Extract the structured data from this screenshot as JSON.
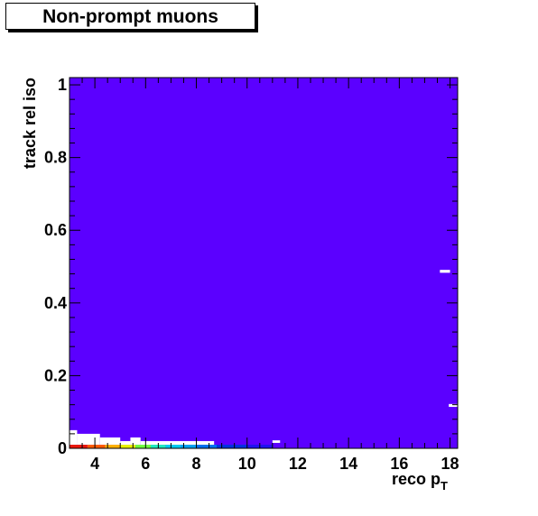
{
  "chart_data": {
    "type": "heatmap",
    "title": "Non-prompt muons",
    "xlabel": "reco p",
    "xlabel_sub": "T",
    "ylabel": "track rel iso",
    "xlim": [
      3,
      18.3
    ],
    "ylim": [
      0,
      1.02
    ],
    "x_ticks": [
      4,
      6,
      8,
      10,
      12,
      14,
      16,
      18
    ],
    "y_ticks": [
      0,
      0.2,
      0.4,
      0.6,
      0.8,
      1
    ],
    "y_tick_labels": [
      "0",
      "0.2",
      "0.4",
      "0.6",
      "0.8",
      "1"
    ],
    "background_color": "#5b00ff",
    "empty_bin_color": "#ffffff",
    "cells": [
      {
        "x0": 3.0,
        "x1": 3.7,
        "y0": 0.0,
        "y1": 0.01,
        "color": "#e8160c"
      },
      {
        "x0": 3.7,
        "x1": 4.4,
        "y0": 0.0,
        "y1": 0.01,
        "color": "#ff5a00"
      },
      {
        "x0": 4.4,
        "x1": 5.0,
        "y0": 0.0,
        "y1": 0.01,
        "color": "#ffb000"
      },
      {
        "x0": 5.0,
        "x1": 5.6,
        "y0": 0.0,
        "y1": 0.01,
        "color": "#e8f000"
      },
      {
        "x0": 5.6,
        "x1": 6.2,
        "y0": 0.0,
        "y1": 0.01,
        "color": "#70ff40"
      },
      {
        "x0": 6.2,
        "x1": 6.8,
        "y0": 0.0,
        "y1": 0.01,
        "color": "#20e8c0"
      },
      {
        "x0": 6.8,
        "x1": 7.4,
        "y0": 0.0,
        "y1": 0.01,
        "color": "#00c8f0"
      },
      {
        "x0": 7.4,
        "x1": 8.0,
        "y0": 0.0,
        "y1": 0.01,
        "color": "#00a0f0"
      },
      {
        "x0": 8.0,
        "x1": 8.8,
        "y0": 0.0,
        "y1": 0.01,
        "color": "#0070f0"
      },
      {
        "x0": 8.8,
        "x1": 10.0,
        "y0": 0.0,
        "y1": 0.01,
        "color": "#0030e0"
      },
      {
        "x0": 10.0,
        "x1": 11.0,
        "y0": 0.0,
        "y1": 0.01,
        "color": "#2010f0"
      },
      {
        "x0": 3.0,
        "x1": 3.3,
        "y0": 0.01,
        "y1": 0.05,
        "color": "#ffffff"
      },
      {
        "x0": 3.3,
        "x1": 4.2,
        "y0": 0.01,
        "y1": 0.04,
        "color": "#ffffff"
      },
      {
        "x0": 4.2,
        "x1": 5.0,
        "y0": 0.01,
        "y1": 0.03,
        "color": "#ffffff"
      },
      {
        "x0": 5.0,
        "x1": 5.4,
        "y0": 0.01,
        "y1": 0.02,
        "color": "#ffffff"
      },
      {
        "x0": 5.4,
        "x1": 5.8,
        "y0": 0.01,
        "y1": 0.03,
        "color": "#ffffff"
      },
      {
        "x0": 5.8,
        "x1": 8.7,
        "y0": 0.01,
        "y1": 0.02,
        "color": "#ffffff"
      },
      {
        "x0": 11.0,
        "x1": 11.3,
        "y0": 0.015,
        "y1": 0.022,
        "color": "#ffffff"
      },
      {
        "x0": 17.6,
        "x1": 18.0,
        "y0": 0.483,
        "y1": 0.491,
        "color": "#ffffff"
      },
      {
        "x0": 17.95,
        "x1": 18.3,
        "y0": 0.114,
        "y1": 0.122,
        "color": "#ffffff"
      }
    ]
  }
}
